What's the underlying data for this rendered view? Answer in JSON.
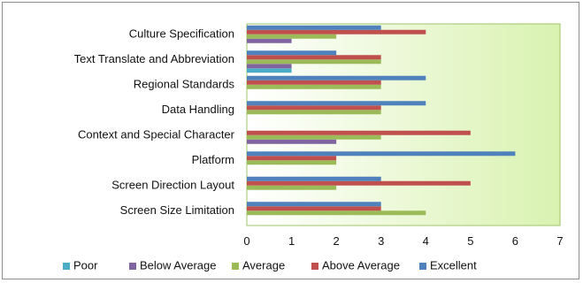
{
  "chart_data": {
    "type": "bar",
    "orientation": "horizontal",
    "categories": [
      "Culture Specification",
      "Text Translate and Abbreviation",
      "Regional  Standards",
      "Data Handling",
      "Context and Special Character",
      "Platform",
      "Screen Direction Layout",
      "Screen Size Limitation"
    ],
    "series": [
      {
        "name": "Poor",
        "color": "#4bacc6",
        "values": [
          0,
          1,
          0,
          0,
          0,
          0,
          0,
          0
        ]
      },
      {
        "name": "Below Average",
        "color": "#8064a2",
        "values": [
          1,
          1,
          0,
          0,
          2,
          0,
          0,
          0
        ]
      },
      {
        "name": "Average",
        "color": "#9bbb59",
        "values": [
          2,
          3,
          3,
          3,
          3,
          2,
          2,
          4
        ]
      },
      {
        "name": "Above Average",
        "color": "#c0504d",
        "values": [
          4,
          3,
          3,
          3,
          5,
          2,
          5,
          3
        ]
      },
      {
        "name": "Excellent",
        "color": "#4f81bd",
        "values": [
          3,
          2,
          4,
          4,
          0,
          6,
          3,
          3
        ]
      }
    ],
    "xlim": [
      0,
      7
    ],
    "xticks": [
      "0",
      "1",
      "2",
      "3",
      "4",
      "5",
      "6",
      "7"
    ],
    "grid": false,
    "legend": "bottom",
    "plot_background": "gradient white to light green"
  }
}
